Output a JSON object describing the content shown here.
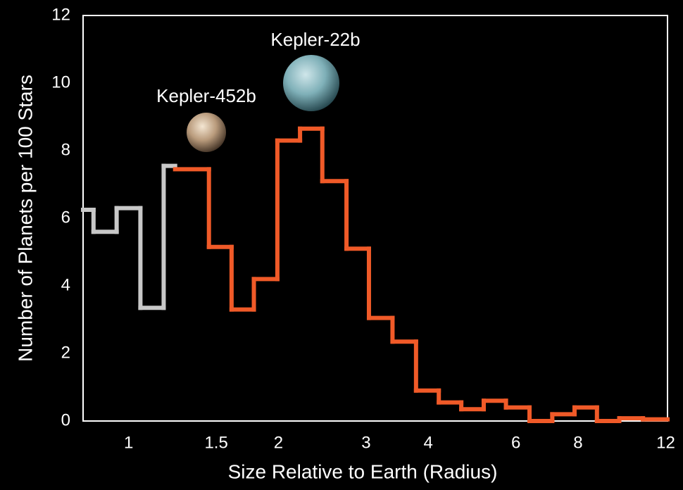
{
  "chart_data": {
    "type": "histogram",
    "x_label": "Size Relative to Earth (Radius)",
    "y_label": "Number of Planets per 100 Stars",
    "xscale": "log",
    "xlim": [
      0.81,
      12.1
    ],
    "xticks": [
      1,
      1.5,
      2,
      3,
      4,
      6,
      8,
      12
    ],
    "ylim": [
      0,
      12
    ],
    "yticks": [
      0,
      2,
      4,
      6,
      8,
      10,
      12
    ],
    "grid": false,
    "annotations": [
      "Kepler-452b",
      "Kepler-22b"
    ],
    "series": [
      {
        "color": "#c8c8c8",
        "bins": [
          0.81,
          0.85,
          0.946,
          1.056,
          1.176,
          1.24
        ],
        "values": [
          6.25,
          5.6,
          6.3,
          3.35,
          7.55
        ]
      },
      {
        "color": "#f05a28",
        "bins": [
          1.24,
          1.45,
          1.61,
          1.785,
          1.99,
          2.21,
          2.45,
          2.74,
          3.04,
          3.39,
          3.78,
          4.2,
          4.66,
          5.17,
          5.73,
          6.39,
          7.1,
          7.87,
          8.73,
          9.68,
          10.8,
          12.1
        ],
        "values": [
          7.45,
          5.15,
          3.3,
          4.2,
          8.3,
          8.65,
          7.1,
          5.1,
          3.05,
          2.35,
          0.9,
          0.55,
          0.35,
          0.6,
          0.4,
          0,
          0.2,
          0.4,
          0,
          0.08,
          0.05
        ]
      }
    ]
  }
}
